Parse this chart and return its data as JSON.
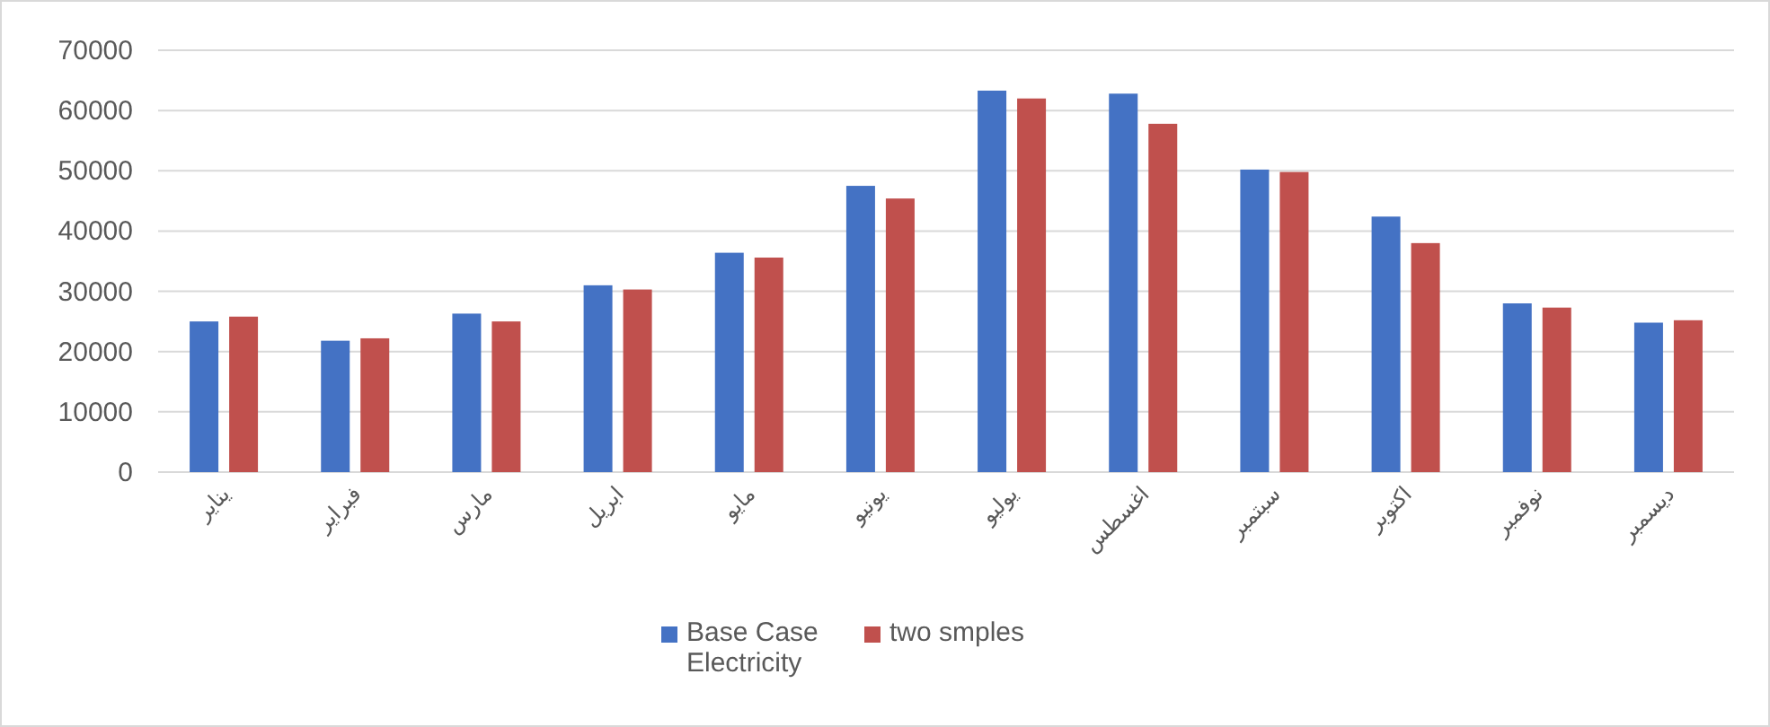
{
  "chart_data": {
    "type": "bar",
    "categories": [
      "يناير",
      "فبراير",
      "مارس",
      "ابريل",
      "مايو",
      "يونيو",
      "يوليو",
      "اغسطس",
      "سبتمبر",
      "اكتوبر",
      "نوفمبر",
      "ديسمبر"
    ],
    "series": [
      {
        "name": "Base Case Electricity",
        "color": "#4472c4",
        "values": [
          25000,
          21800,
          26300,
          31000,
          36400,
          47500,
          63300,
          62800,
          50200,
          42400,
          28000,
          24800
        ]
      },
      {
        "name": "two smples",
        "color": "#c0504d",
        "values": [
          25800,
          22200,
          25000,
          30300,
          35600,
          45400,
          62000,
          57800,
          49800,
          38000,
          27300,
          25200
        ]
      }
    ],
    "ylim": [
      0,
      70000
    ],
    "yticks": [
      0,
      10000,
      20000,
      30000,
      40000,
      50000,
      60000,
      70000
    ],
    "grid": "y",
    "legend": "bottom"
  }
}
